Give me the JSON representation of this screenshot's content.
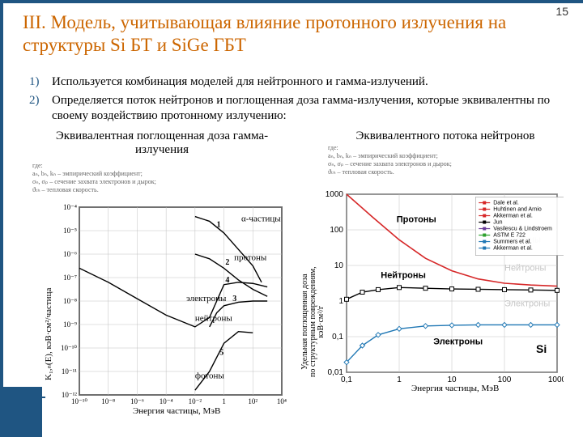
{
  "pageno": "15",
  "title": "III. Модель, учитывающая влияние протонного излучения на структуры Si БТ и SiGe ГБТ",
  "list": [
    "Используется комбинация моделей для нейтронного и гамма-излучений.",
    "Определяется поток нейтронов и поглощенная доза гамма-излучения, которые эквивалентны по своему воздействию протонному излучению:"
  ],
  "sub1": "Эквивалентная поглощенная доза гамма-излучения",
  "sub2": "Эквивалентного потока нейтронов",
  "legend_text": "где:\naₙ, bₙ, kₙ – эмпирический коэффициент;\nσₙ, σₚ – сечение захвата электронов и дырок;\nϑₜₕ – тепловая скорость.",
  "chart1": {
    "type": "line",
    "ylabel": "K₁,ₙ(E), кэВ·см²/частица",
    "xlabel": "Энергия частицы, МэВ",
    "xlim": [
      1e-10,
      10000.0
    ],
    "ylim": [
      1e-12,
      0.0001
    ],
    "xticks": [
      "10⁻¹⁰",
      "10⁻⁸",
      "10⁻⁶",
      "10⁻⁴",
      "10⁻²",
      "1",
      "10²",
      "10⁴"
    ],
    "yticks": [
      "10⁻¹²",
      "10⁻¹¹",
      "10⁻¹⁰",
      "10⁻⁹",
      "10⁻⁸",
      "10⁻⁷",
      "10⁻⁶",
      "10⁻⁵",
      "10⁻⁴"
    ],
    "grid_color": "#c0c0c0",
    "background": "#ffffff",
    "line_color": "#000000",
    "line_width": 1.4,
    "series": {
      "alpha": {
        "label": "α-частицы",
        "id": "1",
        "pts": [
          [
            -2,
            -4.4
          ],
          [
            -1,
            -4.6
          ],
          [
            0,
            -5.1
          ],
          [
            1,
            -5.8
          ],
          [
            2,
            -6.5
          ],
          [
            2.6,
            -7.2
          ]
        ]
      },
      "protons": {
        "label": "протоны",
        "id": "2",
        "pts": [
          [
            -2,
            -6.0
          ],
          [
            -1,
            -6.2
          ],
          [
            0,
            -6.6
          ],
          [
            1,
            -7.1
          ],
          [
            2,
            -7.5
          ],
          [
            3,
            -7.8
          ]
        ]
      },
      "electrons": {
        "label": "электроны",
        "id": "3",
        "pts": [
          [
            -1,
            -9.1
          ],
          [
            -0.5,
            -8.5
          ],
          [
            0,
            -8.2
          ],
          [
            1,
            -8.05
          ],
          [
            2,
            -8.0
          ],
          [
            3,
            -8.0
          ]
        ]
      },
      "neutrons": {
        "label": "нейтроны",
        "id": "4",
        "pts": [
          [
            -10,
            -6.6
          ],
          [
            -8,
            -7.2
          ],
          [
            -6,
            -7.9
          ],
          [
            -4,
            -8.6
          ],
          [
            -2,
            -9.1
          ],
          [
            -1,
            -8.7
          ],
          [
            0,
            -7.3
          ],
          [
            1,
            -7.2
          ],
          [
            2,
            -7.25
          ],
          [
            3,
            -7.4
          ]
        ]
      },
      "photons": {
        "label": "фотоны",
        "id": "5",
        "pts": [
          [
            -2,
            -11.8
          ],
          [
            -1,
            -11.0
          ],
          [
            0,
            -9.8
          ],
          [
            1,
            -9.3
          ],
          [
            2,
            -9.35
          ]
        ]
      }
    }
  },
  "chart2": {
    "type": "line",
    "ylabel": "Удельная поглощенная доза\\nпо структурным повреждениям,\\nкэВ·см²/г",
    "xlabel": "Энергия частицы, МэВ",
    "xlim": [
      0.1,
      1000
    ],
    "ylim": [
      0.01,
      1000
    ],
    "xticks": [
      "0,1",
      "1",
      "10",
      "100",
      "1000"
    ],
    "yticks": [
      "0,01",
      "0,1",
      "1",
      "10",
      "100",
      "1000"
    ],
    "background": "#ffffff",
    "grid_color": "#c0c0c0",
    "annot": {
      "protons": "Протоны",
      "neutrons": "Нейтроны",
      "electrons": "Электроны",
      "si": "Si"
    },
    "shadow_protons": "Протоны",
    "shadow_neutrons": "Нейтроны",
    "shadow_electrons": "Электроны",
    "series": {
      "protons": {
        "color": "#d62728",
        "marker": "none",
        "width": 1.6,
        "pts": [
          [
            -1,
            3
          ],
          [
            -0.5,
            2.35
          ],
          [
            0,
            1.72
          ],
          [
            0.5,
            1.2
          ],
          [
            1,
            0.85
          ],
          [
            1.5,
            0.62
          ],
          [
            2,
            0.5
          ],
          [
            2.5,
            0.45
          ],
          [
            3,
            0.42
          ]
        ]
      },
      "neutrons": {
        "color": "#000000",
        "marker": "square",
        "width": 1.4,
        "pts": [
          [
            -1,
            0.05
          ],
          [
            -0.7,
            0.25
          ],
          [
            -0.4,
            0.32
          ],
          [
            0,
            0.38
          ],
          [
            0.5,
            0.36
          ],
          [
            1,
            0.34
          ],
          [
            1.5,
            0.33
          ],
          [
            2,
            0.32
          ],
          [
            2.5,
            0.31
          ],
          [
            3,
            0.3
          ]
        ]
      },
      "electrons": {
        "color": "#1f77b4",
        "marker": "diamond",
        "width": 1.4,
        "pts": [
          [
            -1,
            -1.72
          ],
          [
            -0.7,
            -1.25
          ],
          [
            -0.4,
            -0.95
          ],
          [
            0,
            -0.78
          ],
          [
            0.5,
            -0.7
          ],
          [
            1,
            -0.68
          ],
          [
            1.5,
            -0.67
          ],
          [
            2,
            -0.67
          ],
          [
            2.5,
            -0.67
          ],
          [
            3,
            -0.67
          ]
        ]
      }
    },
    "legend": [
      {
        "c": "#d62728",
        "t": "Dale et al."
      },
      {
        "c": "#d62728",
        "t": "Huhtinen and Arnio"
      },
      {
        "c": "#d62728",
        "t": "Akkerman et al."
      },
      {
        "c": "#000000",
        "t": "Jun"
      },
      {
        "c": "#6a3d9a",
        "t": "Vasilescu & Lindstroem"
      },
      {
        "c": "#2ca02c",
        "t": "ASTM E 722"
      },
      {
        "c": "#1f77b4",
        "t": "Summers et al."
      },
      {
        "c": "#1f77b4",
        "t": "Akkerman et al."
      }
    ]
  }
}
